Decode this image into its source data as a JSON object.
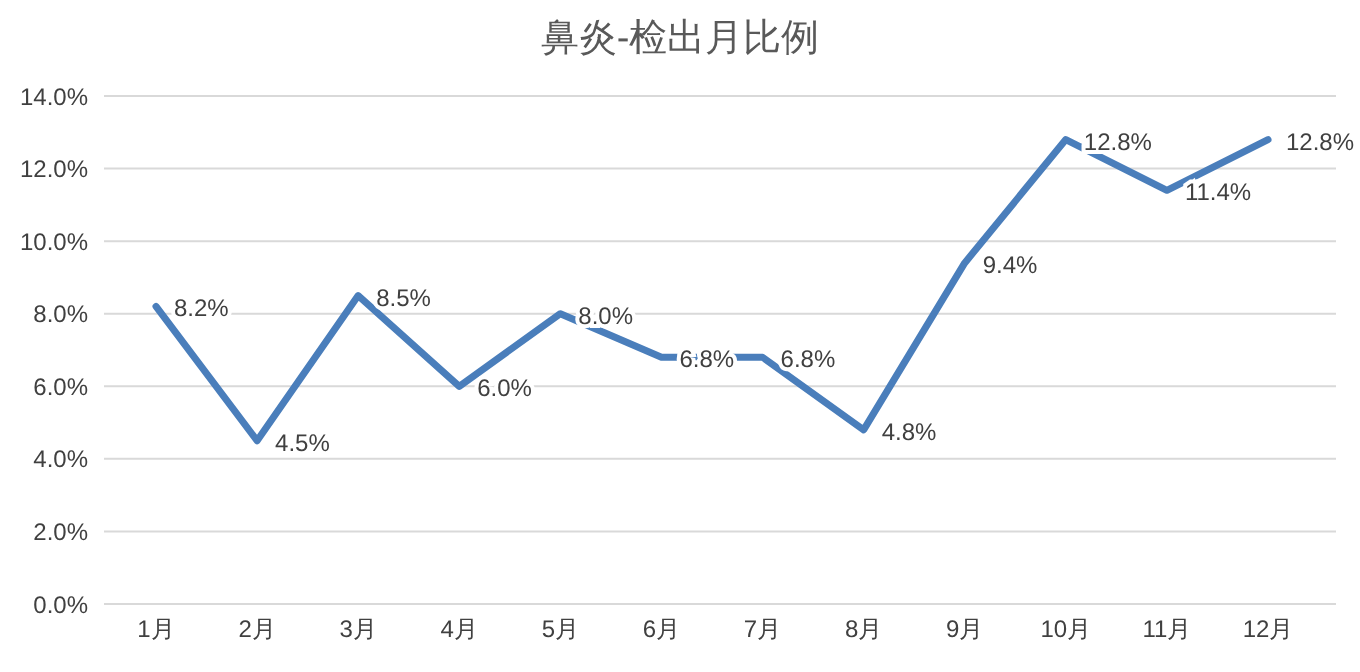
{
  "chart_data": {
    "type": "line",
    "title": "鼻炎-检出月比例",
    "categories": [
      "1月",
      "2月",
      "3月",
      "4月",
      "5月",
      "6月",
      "7月",
      "8月",
      "9月",
      "10月",
      "11月",
      "12月"
    ],
    "series": [
      {
        "color": "#4a7ebb",
        "values": [
          8.2,
          4.5,
          8.5,
          6.0,
          8.0,
          6.8,
          6.8,
          4.8,
          9.4,
          12.8,
          11.4,
          12.8
        ],
        "value_labels": [
          "8.2%",
          "4.5%",
          "8.5%",
          "6.0%",
          "8.0%",
          "6.8%",
          "6.8%",
          "4.8%",
          "9.4%",
          "12.8%",
          "11.4%",
          "12.8%"
        ]
      }
    ],
    "ylim": [
      0,
      14
    ],
    "yticks": [
      {
        "value": 0,
        "label": "0.0%"
      },
      {
        "value": 2,
        "label": "2.0%"
      },
      {
        "value": 4,
        "label": "4.0%"
      },
      {
        "value": 6,
        "label": "6.0%"
      },
      {
        "value": 8,
        "label": "8.0%"
      },
      {
        "value": 10,
        "label": "10.0%"
      },
      {
        "value": 12,
        "label": "12.0%"
      },
      {
        "value": 14,
        "label": "14.0%"
      }
    ],
    "grid": "y",
    "marker": "none",
    "line_style": "solid"
  }
}
